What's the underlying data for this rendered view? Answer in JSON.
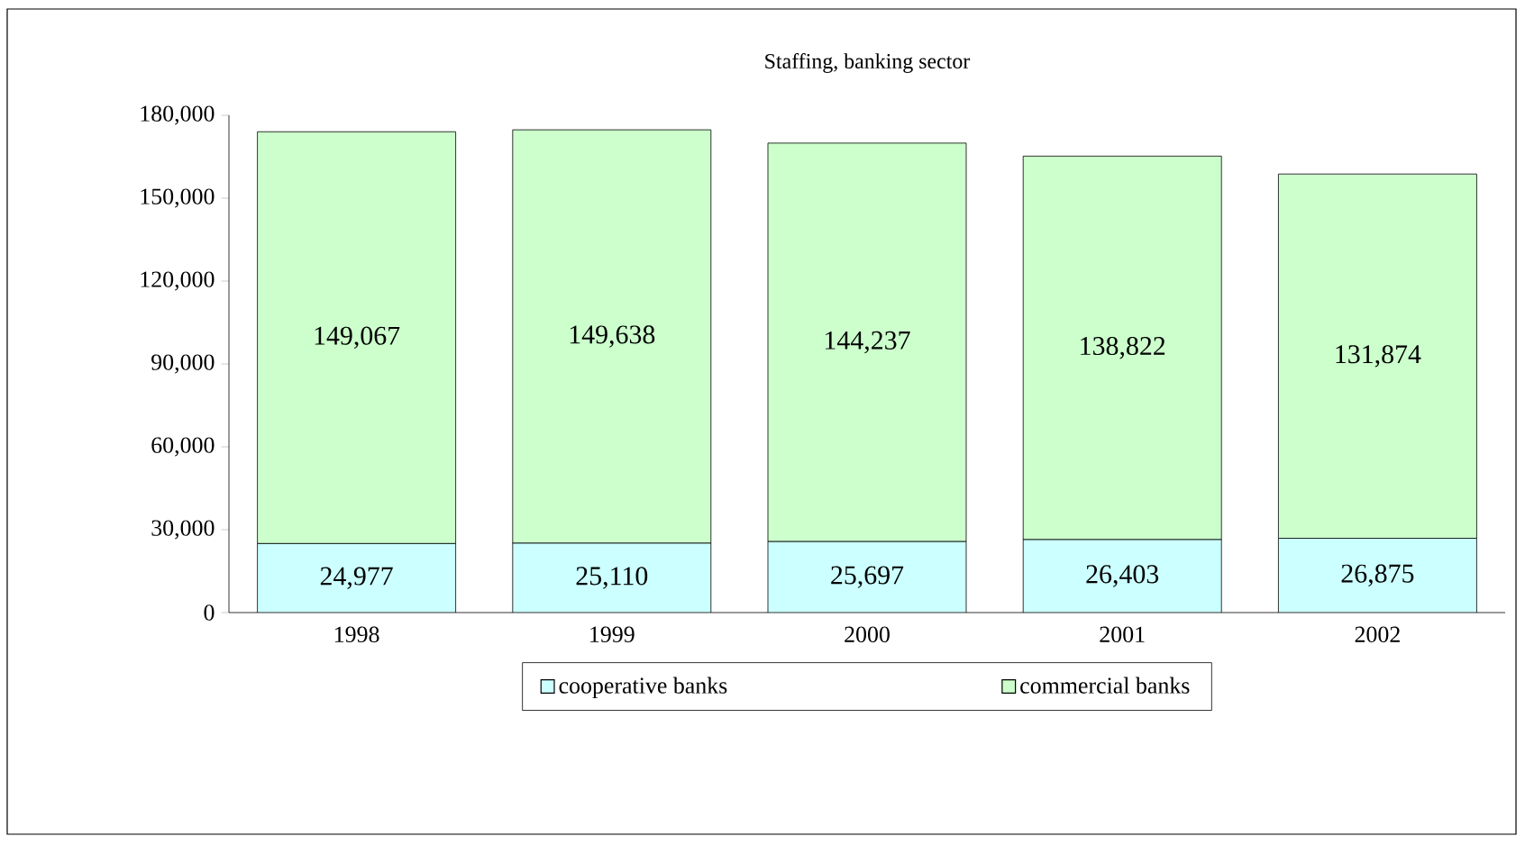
{
  "chart_data": {
    "type": "bar",
    "title": "Staffing, banking sector",
    "stacked": true,
    "categories": [
      "1998",
      "1999",
      "2000",
      "2001",
      "2002"
    ],
    "series": [
      {
        "name": "cooperative banks",
        "color": "#ccffff",
        "values": [
          24977,
          25110,
          25697,
          26403,
          26875
        ],
        "value_labels": [
          "24,977",
          "25,110",
          "25,697",
          "26,403",
          "26,875"
        ]
      },
      {
        "name": "commercial banks",
        "color": "#ccffcc",
        "values": [
          149067,
          149638,
          144237,
          138822,
          131874
        ],
        "value_labels": [
          "149,067",
          "149,638",
          "144,237",
          "138,822",
          "131,874"
        ]
      }
    ],
    "ylim": [
      0,
      180000
    ],
    "yticks": [
      0,
      {
        "value": 30000,
        "label": "30,000"
      },
      {
        "value": 60000,
        "label": "60,000"
      },
      {
        "value": 90000,
        "label": "90,000"
      },
      {
        "value": 120000,
        "label": "120,000"
      },
      {
        "value": 150000,
        "label": "150,000"
      },
      {
        "value": 180000,
        "label": "180,000"
      }
    ],
    "grid": false,
    "legend": "bottom"
  }
}
